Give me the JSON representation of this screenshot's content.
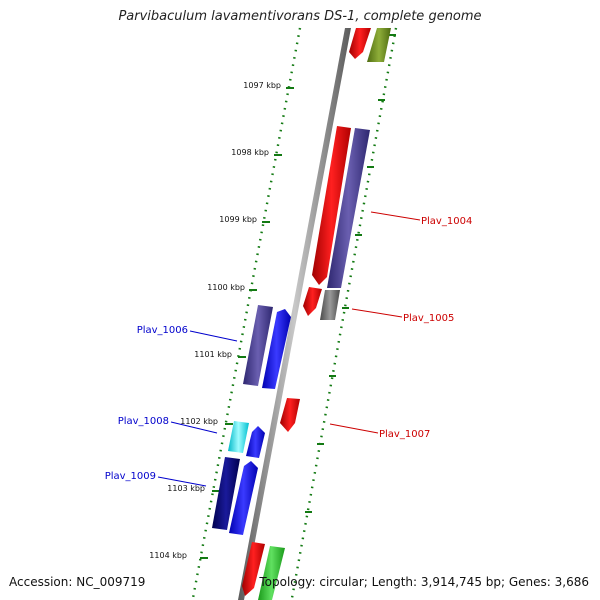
{
  "title": "Parvibaculum lavamentivorans DS-1, complete genome",
  "accession": "Accession: NC_009719",
  "genome_info": "Topology: circular; Length: 3,914,745 bp; Genes: 3,686",
  "kbp_labels": [
    "1097 kbp",
    "1098 kbp",
    "1099 kbp",
    "1100 kbp",
    "1101 kbp",
    "1102 kbp",
    "1103 kbp",
    "1104 kbp"
  ],
  "gene_labels": {
    "plav_1004": "Plav_1004",
    "plav_1005": "Plav_1005",
    "plav_1006": "Plav_1006",
    "plav_1007": "Plav_1007",
    "plav_1008": "Plav_1008",
    "plav_1009": "Plav_1009"
  },
  "colors": {
    "red": "#ff0000",
    "olive": "#6b8e23",
    "slate_blue": "#483d8b",
    "blue": "#0000ff",
    "navy": "#000080",
    "cyan": "#00ffff",
    "gray": "#6e6e6e",
    "green": "#32cd32",
    "tick_green": "#137a13",
    "backbone": "#888888"
  }
}
